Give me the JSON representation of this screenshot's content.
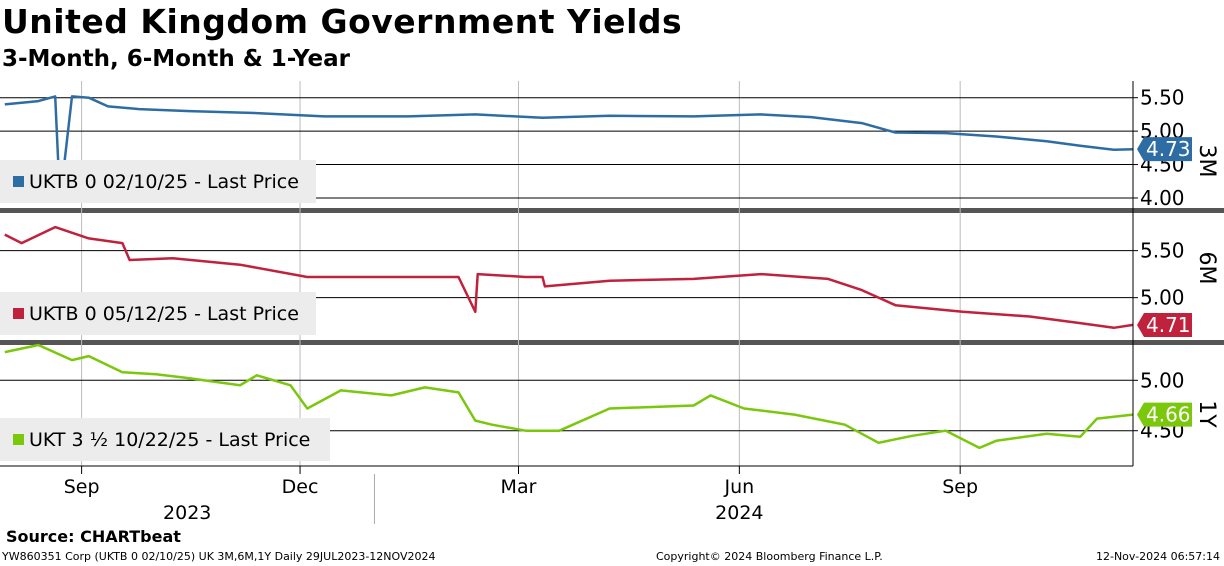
{
  "title": "United Kingdom Government Yields",
  "subtitle": "3-Month, 6-Month & 1-Year",
  "source": "Source: CHARTbeat",
  "footer": {
    "left": "YW860351 Corp (UKTB 0 02/10/25) UK 3M,6M,1Y  Daily 29JUL2023-12NOV2024",
    "center": "Copyright© 2024 Bloomberg Finance L.P.",
    "right": "12-Nov-2024 06:57:14"
  },
  "chart_data": [
    {
      "type": "line",
      "panel_label": "3M",
      "x": [
        "2023-07-31",
        "2023-08-14",
        "2023-08-21",
        "2023-08-23",
        "2023-08-28",
        "2023-09-04",
        "2023-09-12",
        "2023-09-25",
        "2023-10-16",
        "2023-11-13",
        "2023-12-11",
        "2024-01-15",
        "2024-02-12",
        "2024-03-11",
        "2024-04-08",
        "2024-05-13",
        "2024-06-10",
        "2024-07-01",
        "2024-07-22",
        "2024-08-05",
        "2024-08-26",
        "2024-09-16",
        "2024-10-07",
        "2024-10-21",
        "2024-11-04",
        "2024-11-12"
      ],
      "y": [
        5.4,
        5.45,
        5.52,
        3.95,
        5.52,
        5.5,
        5.37,
        5.33,
        5.3,
        5.27,
        5.22,
        5.22,
        5.25,
        5.2,
        5.23,
        5.22,
        5.25,
        5.21,
        5.12,
        4.98,
        4.97,
        4.92,
        4.85,
        4.78,
        4.72,
        4.73
      ],
      "series": [
        {
          "name": "UKTB 0 02/10/25 - Last Price",
          "color": "#2e6da4",
          "last_value": "4.73"
        }
      ],
      "legend": "UKTB 0 02/10/25 - Last Price",
      "yticks": [
        "4.00",
        "4.50",
        "5.00",
        "5.50"
      ],
      "ylim": [
        3.85,
        5.75
      ],
      "grid": true
    },
    {
      "type": "line",
      "panel_label": "6M",
      "x": [
        "2023-07-31",
        "2023-08-07",
        "2023-08-21",
        "2023-09-04",
        "2023-09-18",
        "2023-09-21",
        "2023-10-09",
        "2023-11-06",
        "2023-12-04",
        "2024-01-15",
        "2024-02-05",
        "2024-02-12",
        "2024-02-13",
        "2024-03-04",
        "2024-03-11",
        "2024-03-12",
        "2024-04-08",
        "2024-05-13",
        "2024-06-10",
        "2024-07-08",
        "2024-07-22",
        "2024-08-05",
        "2024-09-02",
        "2024-09-30",
        "2024-10-21",
        "2024-11-04",
        "2024-11-12"
      ],
      "y": [
        5.67,
        5.58,
        5.75,
        5.63,
        5.58,
        5.4,
        5.42,
        5.35,
        5.22,
        5.22,
        5.22,
        4.85,
        5.25,
        5.22,
        5.22,
        5.12,
        5.18,
        5.2,
        5.25,
        5.2,
        5.08,
        4.92,
        4.85,
        4.8,
        4.73,
        4.68,
        4.71
      ],
      "series": [
        {
          "name": "UKTB 0 05/12/25 - Last Price",
          "color": "#c0213d",
          "last_value": "4.71"
        }
      ],
      "legend": "UKTB 0 05/12/25 - Last Price",
      "yticks": [
        "5.00",
        "5.50"
      ],
      "ylim": [
        4.55,
        5.9
      ],
      "grid": true
    },
    {
      "type": "line",
      "panel_label": "1Y",
      "x": [
        "2023-07-31",
        "2023-08-14",
        "2023-08-28",
        "2023-09-04",
        "2023-09-18",
        "2023-10-02",
        "2023-10-16",
        "2023-11-06",
        "2023-11-13",
        "2023-11-27",
        "2023-12-04",
        "2023-12-18",
        "2024-01-08",
        "2024-01-22",
        "2024-02-05",
        "2024-02-12",
        "2024-02-19",
        "2024-03-04",
        "2024-03-18",
        "2024-04-08",
        "2024-05-13",
        "2024-05-20",
        "2024-06-03",
        "2024-06-24",
        "2024-07-15",
        "2024-07-29",
        "2024-08-12",
        "2024-08-26",
        "2024-09-09",
        "2024-09-16",
        "2024-10-07",
        "2024-10-21",
        "2024-10-28",
        "2024-11-12"
      ],
      "y": [
        5.28,
        5.35,
        5.2,
        5.24,
        5.08,
        5.06,
        5.02,
        4.95,
        5.05,
        4.95,
        4.72,
        4.9,
        4.85,
        4.93,
        4.88,
        4.6,
        4.56,
        4.5,
        4.5,
        4.72,
        4.75,
        4.85,
        4.72,
        4.66,
        4.56,
        4.38,
        4.45,
        4.5,
        4.33,
        4.4,
        4.47,
        4.44,
        4.62,
        4.66
      ],
      "series": [
        {
          "name": "UKT 3 ½ 10/22/25 - Last Price",
          "color": "#7ac70c",
          "last_value": "4.66"
        }
      ],
      "legend": "UKT 3 ½ 10/22/25 - Last Price",
      "yticks": [
        "4.50",
        "5.00"
      ],
      "ylim": [
        4.15,
        5.35
      ],
      "grid": true
    }
  ],
  "x_axis": {
    "start": "2023-07-29",
    "end": "2024-11-12",
    "month_ticks": [
      {
        "label": "Sep",
        "date": "2023-09-01"
      },
      {
        "label": "Dec",
        "date": "2023-12-01"
      },
      {
        "label": "Mar",
        "date": "2024-03-01"
      },
      {
        "label": "Jun",
        "date": "2024-06-01"
      },
      {
        "label": "Sep",
        "date": "2024-09-01"
      }
    ],
    "year_labels": [
      {
        "label": "2023",
        "date": "2023-10-15"
      },
      {
        "label": "2024",
        "date": "2024-06-01"
      }
    ],
    "year_divider": "2024-01-01"
  }
}
